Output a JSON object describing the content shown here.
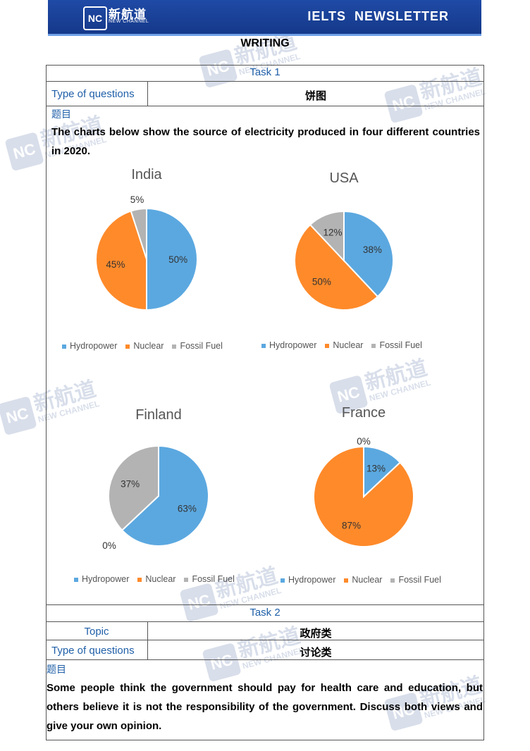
{
  "header": {
    "logo_mark": "NC",
    "logo_cn": "新航道",
    "logo_en": "NEW CHANNEL",
    "title": "IELTS  NEWSLETTER"
  },
  "section_title": "WRITING",
  "task1": {
    "label": "Task 1",
    "type_label": "Type of questions",
    "type_value": "饼图",
    "prompt_label": "题目",
    "prompt": "The charts below show the source of electricity produced in four different countries in 2020."
  },
  "chart_data": [
    {
      "type": "pie",
      "title": "India",
      "categories": [
        "Hydropower",
        "Nuclear",
        "Fossil Fuel"
      ],
      "values": [
        50,
        45,
        5
      ],
      "value_labels": [
        "50%",
        "45%",
        "5%"
      ],
      "legend_position": "bottom"
    },
    {
      "type": "pie",
      "title": "USA",
      "categories": [
        "Hydropower",
        "Nuclear",
        "Fossil Fuel"
      ],
      "values": [
        38,
        50,
        12
      ],
      "value_labels": [
        "38%",
        "50%",
        "12%"
      ],
      "legend_position": "bottom"
    },
    {
      "type": "pie",
      "title": "Finland",
      "categories": [
        "Hydropower",
        "Nuclear",
        "Fossil Fuel"
      ],
      "values": [
        63,
        0,
        37
      ],
      "value_labels": [
        "63%",
        "0%",
        "37%"
      ],
      "legend_position": "bottom"
    },
    {
      "type": "pie",
      "title": "France",
      "categories": [
        "Hydropower",
        "Nuclear",
        "Fossil Fuel"
      ],
      "values": [
        13,
        87,
        0
      ],
      "value_labels": [
        "13%",
        "87%",
        "0%"
      ],
      "legend_position": "bottom"
    }
  ],
  "colors": {
    "Hydropower": "#5ba8e0",
    "Nuclear": "#ff8a2a",
    "Fossil Fuel": "#b3b3b3"
  },
  "task2": {
    "label": "Task 2",
    "topic_label": "Topic",
    "topic_value": "政府类",
    "type_label": "Type of questions",
    "type_value": "讨论类",
    "prompt_label": "题目",
    "prompt": "Some people think the government should pay for health care and education, but others believe it is not the responsibility of the government. Discuss both views and give your own opinion."
  }
}
